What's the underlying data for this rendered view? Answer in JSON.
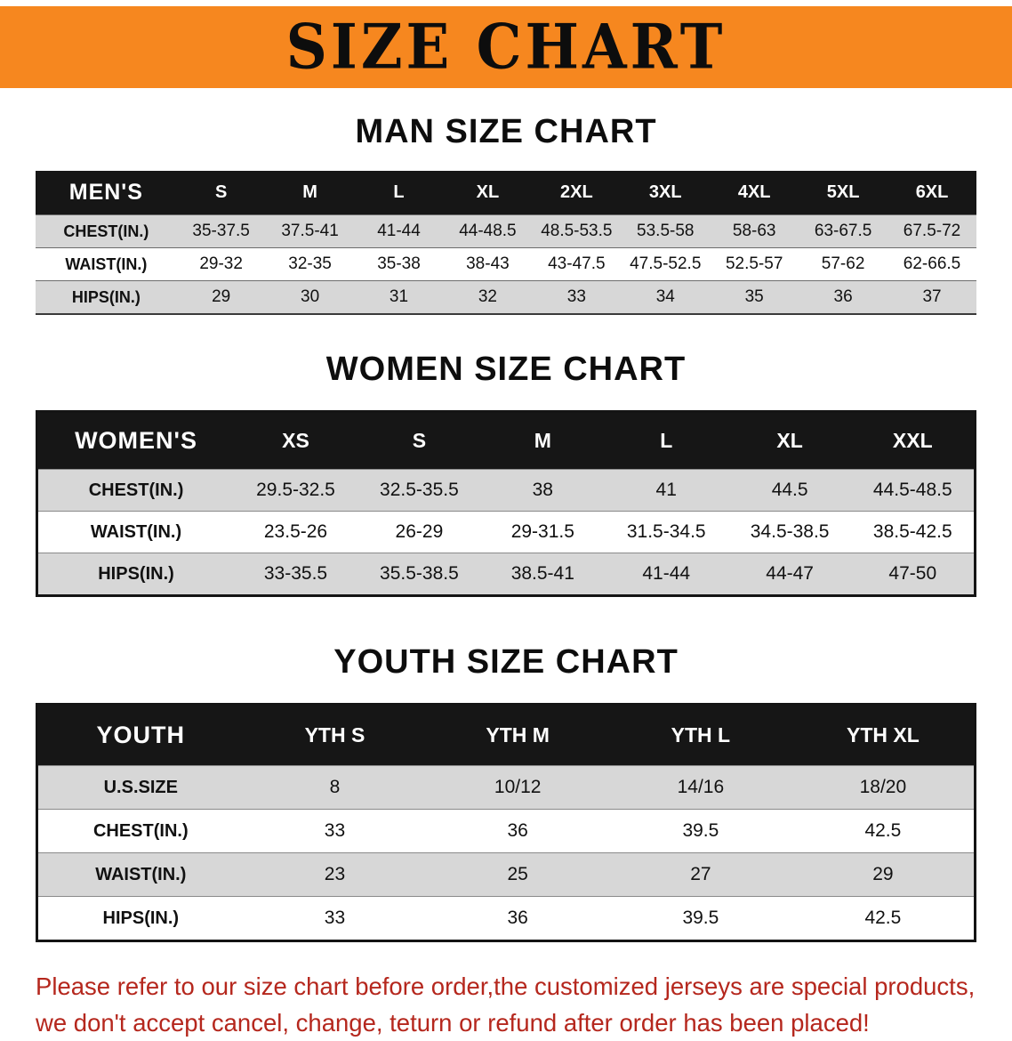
{
  "banner": {
    "title": "SIZE CHART"
  },
  "colors": {
    "banner_bg": "#f6871f",
    "table_header_bg": "#161616",
    "row_alt_bg": "#d7d7d7",
    "notice_text": "#b5271d"
  },
  "men": {
    "heading": "MAN SIZE CHART",
    "header": [
      "MEN'S",
      "S",
      "M",
      "L",
      "XL",
      "2XL",
      "3XL",
      "4XL",
      "5XL",
      "6XL"
    ],
    "rows": [
      [
        "CHEST(IN.)",
        "35-37.5",
        "37.5-41",
        "41-44",
        "44-48.5",
        "48.5-53.5",
        "53.5-58",
        "58-63",
        "63-67.5",
        "67.5-72"
      ],
      [
        "WAIST(IN.)",
        "29-32",
        "32-35",
        "35-38",
        "38-43",
        "43-47.5",
        "47.5-52.5",
        "52.5-57",
        "57-62",
        "62-66.5"
      ],
      [
        "HIPS(IN.)",
        "29",
        "30",
        "31",
        "32",
        "33",
        "34",
        "35",
        "36",
        "37"
      ]
    ]
  },
  "women": {
    "heading": "WOMEN SIZE CHART",
    "header": [
      "WOMEN'S",
      "XS",
      "S",
      "M",
      "L",
      "XL",
      "XXL"
    ],
    "rows": [
      [
        "CHEST(IN.)",
        "29.5-32.5",
        "32.5-35.5",
        "38",
        "41",
        "44.5",
        "44.5-48.5"
      ],
      [
        "WAIST(IN.)",
        "23.5-26",
        "26-29",
        "29-31.5",
        "31.5-34.5",
        "34.5-38.5",
        "38.5-42.5"
      ],
      [
        "HIPS(IN.)",
        "33-35.5",
        "35.5-38.5",
        "38.5-41",
        "41-44",
        "44-47",
        "47-50"
      ]
    ]
  },
  "youth": {
    "heading": "YOUTH SIZE CHART",
    "header": [
      "YOUTH",
      "YTH S",
      "YTH M",
      "YTH L",
      "YTH XL"
    ],
    "rows": [
      [
        "U.S.SIZE",
        "8",
        "10/12",
        "14/16",
        "18/20"
      ],
      [
        "CHEST(IN.)",
        "33",
        "36",
        "39.5",
        "42.5"
      ],
      [
        "WAIST(IN.)",
        "23",
        "25",
        "27",
        "29"
      ],
      [
        "HIPS(IN.)",
        "33",
        "36",
        "39.5",
        "42.5"
      ]
    ]
  },
  "notice": {
    "line1": "Please refer to our size chart before order,the customized jerseys are special products,",
    "line2": "we don't accept cancel, change, teturn or refund after order has been placed!"
  }
}
